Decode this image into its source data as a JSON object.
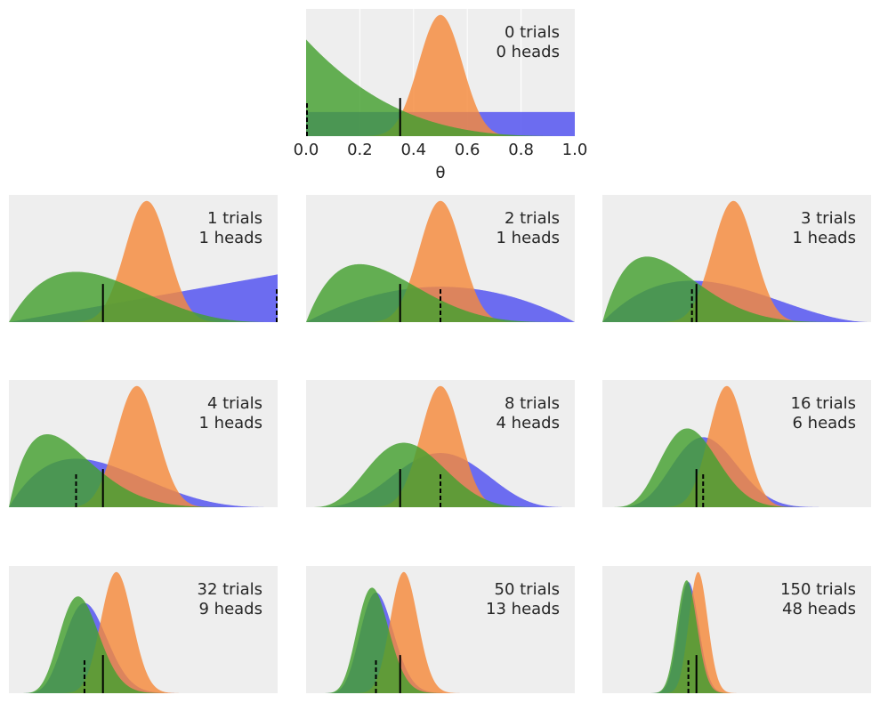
{
  "chart_data": {
    "type": "area",
    "title": "",
    "xlabel": "θ",
    "xlim": [
      0,
      1
    ],
    "xticks": [
      "0.0",
      "0.2",
      "0.4",
      "0.6",
      "0.8",
      "1.0"
    ],
    "grid": true,
    "theta_real": 0.35,
    "priors": [
      {
        "name": "uniform",
        "alpha": 1,
        "beta": 1,
        "color": "#4f4ff0"
      },
      {
        "name": "bell",
        "alpha": 20,
        "beta": 20,
        "color": "#f58a3c"
      },
      {
        "name": "skewed",
        "alpha": 1,
        "beta": 4,
        "color": "#44a030"
      }
    ],
    "panels": [
      {
        "trials": 0,
        "heads": 0,
        "line1": "0 trials",
        "line2": "0 heads"
      },
      {
        "trials": 1,
        "heads": 1,
        "line1": "1 trials",
        "line2": "1 heads"
      },
      {
        "trials": 2,
        "heads": 1,
        "line1": "2 trials",
        "line2": "1 heads"
      },
      {
        "trials": 3,
        "heads": 1,
        "line1": "3 trials",
        "line2": "1 heads"
      },
      {
        "trials": 4,
        "heads": 1,
        "line1": "4 trials",
        "line2": "1 heads"
      },
      {
        "trials": 8,
        "heads": 4,
        "line1": "8 trials",
        "line2": "4 heads"
      },
      {
        "trials": 16,
        "heads": 6,
        "line1": "16 trials",
        "line2": "6 heads"
      },
      {
        "trials": 32,
        "heads": 9,
        "line1": "32 trials",
        "line2": "9 heads"
      },
      {
        "trials": 50,
        "heads": 13,
        "line1": "50 trials",
        "line2": "13 heads"
      },
      {
        "trials": 150,
        "heads": 48,
        "line1": "150 trials",
        "line2": "48 heads"
      }
    ]
  }
}
